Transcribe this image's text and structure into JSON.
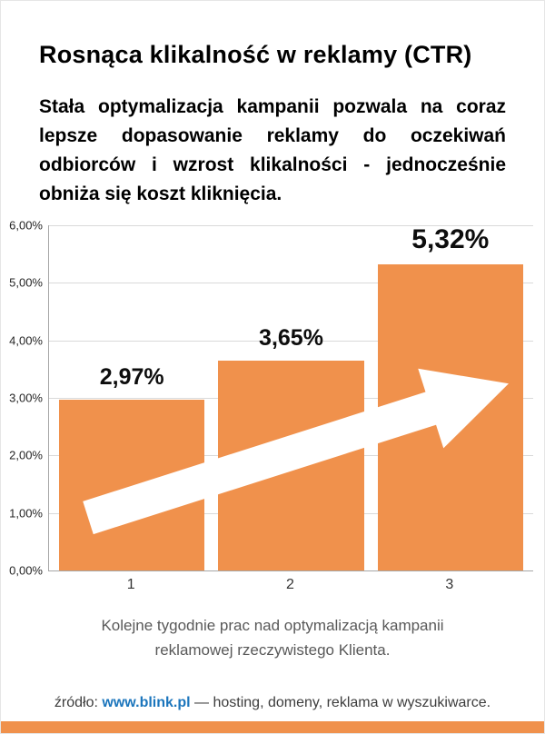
{
  "header": {
    "title": "Rosnąca klikalność w reklamy (CTR)",
    "description": "Stała optymalizacja kampanii pozwala na coraz lepsze dopasowanie reklamy do oczekiwań odbiorców i wzrost klikalności - jednocześnie obniża się koszt kliknięcia."
  },
  "caption": {
    "line1": "Kolejne tygodnie prac nad optymalizacją kampanii",
    "line2": "reklamowej rzeczywistego Klienta."
  },
  "footer": {
    "source_label": "źródło:",
    "source_link": "www.blink.pl",
    "dash": "—",
    "tagline": "hosting, domeny, reklama w wyszukiwarce."
  },
  "colors": {
    "bar": "#F0914C",
    "accent_strip": "#F0914C",
    "link": "#1b75bc",
    "grid": "#d9d9d9",
    "axis": "#a6a6a6",
    "caption_text": "#595959"
  },
  "chart_data": {
    "type": "bar",
    "title": "Rosnąca klikalność w reklamy (CTR)",
    "categories": [
      "1",
      "2",
      "3"
    ],
    "values": [
      2.97,
      3.65,
      5.32
    ],
    "data_labels": [
      "2,97%",
      "3,65%",
      "5,32%"
    ],
    "y_ticks": [
      "6,00%",
      "5,00%",
      "4,00%",
      "3,00%",
      "2,00%",
      "1,00%",
      "0,00%"
    ],
    "ylim": [
      0,
      6
    ],
    "xlabel": "",
    "ylabel": "",
    "grid": true,
    "legend": false,
    "annotation": "white upward trend arrow across bars",
    "x_caption": "Kolejne tygodnie prac nad optymalizacją kampanii reklamowej rzeczywistego Klienta."
  }
}
